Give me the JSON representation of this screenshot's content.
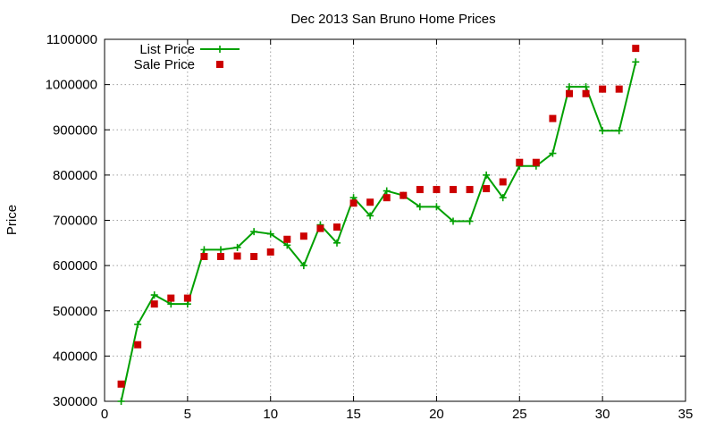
{
  "chart_data": {
    "type": "line",
    "title": "Dec 2013 San Bruno Home Prices",
    "xlabel": "",
    "ylabel": "Price",
    "xlim": [
      0,
      35
    ],
    "ylim": [
      300000,
      1100000
    ],
    "xticks": [
      0,
      5,
      10,
      15,
      20,
      25,
      30,
      35
    ],
    "yticks": [
      300000,
      400000,
      500000,
      600000,
      700000,
      800000,
      900000,
      1000000,
      1100000
    ],
    "grid": true,
    "legend": "top-left",
    "x": [
      1,
      2,
      3,
      4,
      5,
      6,
      7,
      8,
      9,
      10,
      11,
      12,
      13,
      14,
      15,
      16,
      17,
      18,
      19,
      20,
      21,
      22,
      23,
      24,
      25,
      26,
      27,
      28,
      29,
      30,
      31,
      32
    ],
    "series": [
      {
        "name": "List Price",
        "kind": "line",
        "marker": "plus",
        "color": "#00a000",
        "values": [
          300000,
          470000,
          535000,
          515000,
          515000,
          635000,
          635000,
          640000,
          675000,
          670000,
          645000,
          600000,
          690000,
          650000,
          750000,
          710000,
          765000,
          755000,
          730000,
          730000,
          698000,
          698000,
          800000,
          750000,
          820000,
          820000,
          848000,
          995000,
          995000,
          898000,
          898000,
          1050000
        ]
      },
      {
        "name": "Sale Price",
        "kind": "points",
        "marker": "square",
        "color": "#cc0000",
        "values": [
          338000,
          425000,
          515000,
          528000,
          528000,
          620000,
          620000,
          621000,
          620000,
          630000,
          658000,
          665000,
          682000,
          685000,
          738000,
          740000,
          750000,
          755000,
          768000,
          768000,
          768000,
          768000,
          770000,
          785000,
          828000,
          828000,
          925000,
          980000,
          980000,
          990000,
          990000,
          1080000
        ]
      }
    ]
  }
}
